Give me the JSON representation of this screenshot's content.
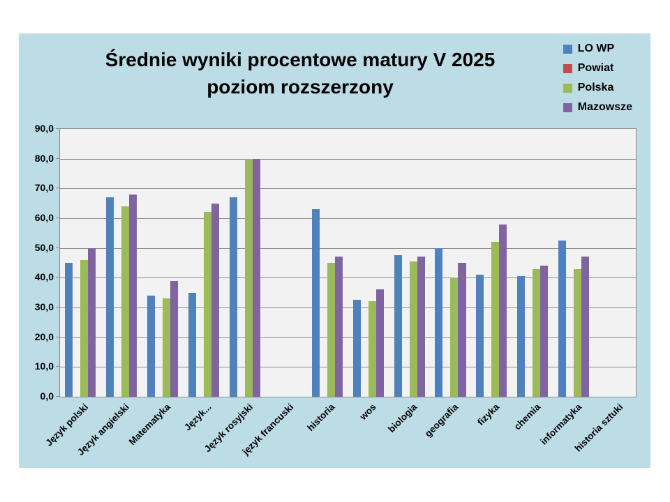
{
  "page": {
    "background": "#FFFFFF"
  },
  "chart_data": {
    "type": "bar",
    "title_line1": "Średnie wyniki procentowe matury V 2025",
    "title_line2": "poziom rozszerzony",
    "xlabel": "",
    "ylabel": "",
    "chart_background": "#BCDDE6",
    "plot_background": "#F2F2F2",
    "grid_color": "#898989",
    "grid": true,
    "legend_position": "top-right",
    "categories": [
      "Język polski",
      "Język angielski",
      "Matematyka",
      "Język...",
      "Język rosyjski",
      "język francuski",
      "historia",
      "wos",
      "biologia",
      "geografia",
      "fizyka",
      "chemia",
      "informatyka",
      "historia sztuki"
    ],
    "series": [
      {
        "name": "LO WP",
        "color": "#4F81BD",
        "values": [
          45,
          67,
          34,
          35,
          67,
          null,
          63,
          32.5,
          47.5,
          50,
          41,
          40.5,
          52.5,
          null
        ]
      },
      {
        "name": "Powiat",
        "color": "#C0504D",
        "values": [
          null,
          null,
          null,
          null,
          null,
          null,
          null,
          null,
          null,
          null,
          null,
          null,
          null,
          null
        ]
      },
      {
        "name": "Polska",
        "color": "#9BBB59",
        "values": [
          46,
          64,
          33,
          62,
          80,
          null,
          45,
          32,
          45.5,
          40,
          52,
          43,
          43,
          null
        ]
      },
      {
        "name": "Mazowsze",
        "color": "#8064A2",
        "values": [
          50,
          68,
          39,
          65,
          80,
          null,
          47,
          36,
          47,
          45,
          58,
          44,
          47,
          null
        ]
      }
    ],
    "y_axis": {
      "min": 0,
      "max": 90,
      "step": 10,
      "tick_labels": [
        "0,0",
        "10,0",
        "20,0",
        "30,0",
        "40,0",
        "50,0",
        "60,0",
        "70,0",
        "80,0",
        "90,0"
      ]
    }
  }
}
